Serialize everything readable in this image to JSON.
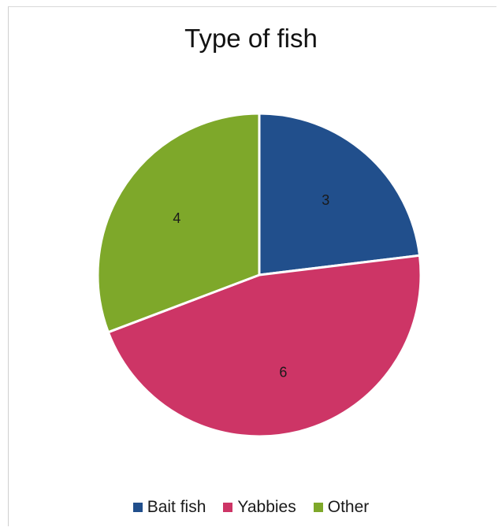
{
  "chart_data": {
    "type": "pie",
    "title": "Type of fish",
    "categories": [
      "Bait fish",
      "Yabbies",
      "Other"
    ],
    "values": [
      3,
      6,
      4
    ],
    "data_labels": [
      "3",
      "6",
      "4"
    ],
    "colors": [
      "#214f8c",
      "#cd3566",
      "#7ea82a"
    ],
    "legend_position": "bottom"
  }
}
